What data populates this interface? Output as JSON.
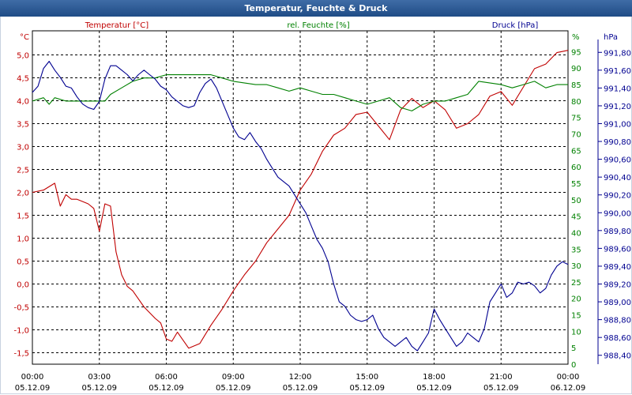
{
  "title": "Temperatur, Feuchte & Druck",
  "colors": {
    "temp": "#c00000",
    "hum": "#008000",
    "press": "#000090",
    "grid": "#000000",
    "time": "#000000"
  },
  "chart_data": {
    "type": "line",
    "title": "Temperatur, Feuchte & Druck",
    "x": {
      "ticks": [
        {
          "h": 0,
          "time": "00:00",
          "date": "05.12.09"
        },
        {
          "h": 3,
          "time": "03:00",
          "date": "05.12.09"
        },
        {
          "h": 6,
          "time": "06:00",
          "date": "05.12.09"
        },
        {
          "h": 9,
          "time": "09:00",
          "date": "05.12.09"
        },
        {
          "h": 12,
          "time": "12:00",
          "date": "05.12.09"
        },
        {
          "h": 15,
          "time": "15:00",
          "date": "05.12.09"
        },
        {
          "h": 18,
          "time": "18:00",
          "date": "05.12.09"
        },
        {
          "h": 21,
          "time": "21:00",
          "date": "05.12.09"
        },
        {
          "h": 24,
          "time": "00:00",
          "date": "06.12.09"
        }
      ],
      "range": [
        0,
        24
      ]
    },
    "axes": {
      "temp": {
        "label": "Temperatur [°C]",
        "unit": "°C",
        "range": [
          -1.75,
          5.25
        ],
        "ticks": [
          "-1,5",
          "-1,0",
          "-0,5",
          "0,0",
          "0,5",
          "1,0",
          "1,5",
          "2,0",
          "2,5",
          "3,0",
          "3,5",
          "4,0",
          "4,5",
          "5,0"
        ],
        "tick_values": [
          -1.5,
          -1.0,
          -0.5,
          0.0,
          0.5,
          1.0,
          1.5,
          2.0,
          2.5,
          3.0,
          3.5,
          4.0,
          4.5,
          5.0
        ]
      },
      "hum": {
        "label": "rel. Feuchte [%]",
        "unit": "%",
        "range": [
          0,
          97.5
        ],
        "ticks": [
          "0",
          "5",
          "10",
          "15",
          "20",
          "25",
          "30",
          "35",
          "40",
          "45",
          "50",
          "55",
          "60",
          "65",
          "70",
          "75",
          "80",
          "85",
          "90",
          "95"
        ],
        "tick_values": [
          0,
          5,
          10,
          15,
          20,
          25,
          30,
          35,
          40,
          45,
          50,
          55,
          60,
          65,
          70,
          75,
          80,
          85,
          90,
          95
        ]
      },
      "press": {
        "label": "Druck [hPa]",
        "unit": "hPa",
        "range": [
          988.3,
          991.9
        ],
        "ticks": [
          "988,40",
          "988,60",
          "988,80",
          "989,00",
          "989,20",
          "989,40",
          "989,60",
          "989,80",
          "990,00",
          "990,20",
          "990,40",
          "990,60",
          "990,80",
          "991,00",
          "991,20",
          "991,40",
          "991,60",
          "991,80"
        ],
        "tick_values": [
          988.4,
          988.6,
          988.8,
          989.0,
          989.2,
          989.4,
          989.6,
          989.8,
          990.0,
          990.2,
          990.4,
          990.6,
          990.8,
          991.0,
          991.2,
          991.4,
          991.6,
          991.8
        ]
      }
    },
    "series": [
      {
        "name": "Temperatur [°C]",
        "axis": "temp",
        "points": [
          [
            0,
            2.0
          ],
          [
            0.5,
            2.05
          ],
          [
            1.0,
            2.2
          ],
          [
            1.25,
            1.7
          ],
          [
            1.5,
            1.95
          ],
          [
            1.75,
            1.85
          ],
          [
            2.0,
            1.85
          ],
          [
            2.5,
            1.75
          ],
          [
            2.75,
            1.65
          ],
          [
            3.0,
            1.15
          ],
          [
            3.25,
            1.75
          ],
          [
            3.5,
            1.7
          ],
          [
            3.75,
            0.7
          ],
          [
            4.0,
            0.2
          ],
          [
            4.25,
            -0.05
          ],
          [
            4.5,
            -0.15
          ],
          [
            5.0,
            -0.5
          ],
          [
            5.5,
            -0.75
          ],
          [
            5.75,
            -0.85
          ],
          [
            6.0,
            -1.2
          ],
          [
            6.25,
            -1.25
          ],
          [
            6.5,
            -1.05
          ],
          [
            7.0,
            -1.4
          ],
          [
            7.5,
            -1.3
          ],
          [
            8.0,
            -0.9
          ],
          [
            8.5,
            -0.55
          ],
          [
            9.0,
            -0.15
          ],
          [
            9.5,
            0.2
          ],
          [
            10.0,
            0.5
          ],
          [
            10.5,
            0.9
          ],
          [
            11.0,
            1.2
          ],
          [
            11.5,
            1.5
          ],
          [
            12.0,
            2.05
          ],
          [
            12.5,
            2.4
          ],
          [
            13.0,
            2.9
          ],
          [
            13.5,
            3.25
          ],
          [
            14.0,
            3.4
          ],
          [
            14.5,
            3.7
          ],
          [
            15.0,
            3.75
          ],
          [
            15.5,
            3.45
          ],
          [
            16.0,
            3.15
          ],
          [
            16.5,
            3.8
          ],
          [
            17.0,
            4.05
          ],
          [
            17.5,
            3.85
          ],
          [
            18.0,
            4.0
          ],
          [
            18.5,
            3.8
          ],
          [
            19.0,
            3.4
          ],
          [
            19.5,
            3.5
          ],
          [
            20.0,
            3.7
          ],
          [
            20.5,
            4.1
          ],
          [
            21.0,
            4.2
          ],
          [
            21.5,
            3.9
          ],
          [
            22.0,
            4.3
          ],
          [
            22.5,
            4.7
          ],
          [
            23.0,
            4.8
          ],
          [
            23.5,
            5.05
          ],
          [
            24.0,
            5.1
          ]
        ]
      },
      {
        "name": "rel. Feuchte [%]",
        "axis": "hum",
        "points": [
          [
            0,
            80
          ],
          [
            0.5,
            81
          ],
          [
            0.75,
            79
          ],
          [
            1.0,
            81
          ],
          [
            1.5,
            80
          ],
          [
            2.0,
            80
          ],
          [
            2.5,
            80
          ],
          [
            3.0,
            80
          ],
          [
            3.25,
            80
          ],
          [
            3.5,
            82
          ],
          [
            4.0,
            84
          ],
          [
            4.5,
            86
          ],
          [
            5.0,
            87
          ],
          [
            5.5,
            87
          ],
          [
            6.0,
            88
          ],
          [
            7.0,
            88
          ],
          [
            8.0,
            88
          ],
          [
            8.5,
            87
          ],
          [
            9.0,
            86
          ],
          [
            10.0,
            85
          ],
          [
            10.5,
            85
          ],
          [
            11.0,
            84
          ],
          [
            11.5,
            83
          ],
          [
            12.0,
            84
          ],
          [
            12.5,
            83
          ],
          [
            13.0,
            82
          ],
          [
            13.5,
            82
          ],
          [
            14.0,
            81
          ],
          [
            14.5,
            80
          ],
          [
            15.0,
            79
          ],
          [
            15.5,
            80
          ],
          [
            16.0,
            81
          ],
          [
            16.5,
            78
          ],
          [
            17.0,
            77
          ],
          [
            17.5,
            79
          ],
          [
            18.0,
            80
          ],
          [
            18.5,
            80
          ],
          [
            19.0,
            81
          ],
          [
            19.5,
            82
          ],
          [
            20.0,
            86
          ],
          [
            21.0,
            85
          ],
          [
            21.5,
            84
          ],
          [
            22.0,
            85
          ],
          [
            22.5,
            86
          ],
          [
            23.0,
            84
          ],
          [
            23.5,
            85
          ],
          [
            24.0,
            85
          ]
        ]
      },
      {
        "name": "Druck [hPa]",
        "axis": "press",
        "points": [
          [
            0,
            991.35
          ],
          [
            0.25,
            991.42
          ],
          [
            0.5,
            991.62
          ],
          [
            0.75,
            991.7
          ],
          [
            1.0,
            991.6
          ],
          [
            1.25,
            991.52
          ],
          [
            1.5,
            991.42
          ],
          [
            1.75,
            991.4
          ],
          [
            2.0,
            991.3
          ],
          [
            2.25,
            991.22
          ],
          [
            2.5,
            991.18
          ],
          [
            2.75,
            991.16
          ],
          [
            3.0,
            991.25
          ],
          [
            3.25,
            991.5
          ],
          [
            3.5,
            991.65
          ],
          [
            3.75,
            991.65
          ],
          [
            4.0,
            991.6
          ],
          [
            4.25,
            991.55
          ],
          [
            4.5,
            991.48
          ],
          [
            4.75,
            991.55
          ],
          [
            5.0,
            991.6
          ],
          [
            5.25,
            991.55
          ],
          [
            5.5,
            991.5
          ],
          [
            5.75,
            991.42
          ],
          [
            6.0,
            991.38
          ],
          [
            6.25,
            991.3
          ],
          [
            6.5,
            991.25
          ],
          [
            6.75,
            991.2
          ],
          [
            7.0,
            991.18
          ],
          [
            7.25,
            991.2
          ],
          [
            7.5,
            991.35
          ],
          [
            7.75,
            991.45
          ],
          [
            8.0,
            991.5
          ],
          [
            8.25,
            991.4
          ],
          [
            8.5,
            991.25
          ],
          [
            8.75,
            991.1
          ],
          [
            9.0,
            990.95
          ],
          [
            9.25,
            990.85
          ],
          [
            9.5,
            990.82
          ],
          [
            9.75,
            990.9
          ],
          [
            10.0,
            990.8
          ],
          [
            10.25,
            990.72
          ],
          [
            10.5,
            990.6
          ],
          [
            10.75,
            990.5
          ],
          [
            11.0,
            990.4
          ],
          [
            11.25,
            990.35
          ],
          [
            11.5,
            990.3
          ],
          [
            11.75,
            990.2
          ],
          [
            12.0,
            990.1
          ],
          [
            12.25,
            990.0
          ],
          [
            12.5,
            989.85
          ],
          [
            12.75,
            989.7
          ],
          [
            13.0,
            989.6
          ],
          [
            13.25,
            989.45
          ],
          [
            13.5,
            989.2
          ],
          [
            13.75,
            989.0
          ],
          [
            14.0,
            988.95
          ],
          [
            14.25,
            988.85
          ],
          [
            14.5,
            988.8
          ],
          [
            14.75,
            988.78
          ],
          [
            15.0,
            988.8
          ],
          [
            15.25,
            988.85
          ],
          [
            15.5,
            988.7
          ],
          [
            15.75,
            988.6
          ],
          [
            16.0,
            988.55
          ],
          [
            16.25,
            988.5
          ],
          [
            16.5,
            988.55
          ],
          [
            16.75,
            988.6
          ],
          [
            17.0,
            988.5
          ],
          [
            17.25,
            988.45
          ],
          [
            17.5,
            988.55
          ],
          [
            17.75,
            988.65
          ],
          [
            18.0,
            988.92
          ],
          [
            18.25,
            988.8
          ],
          [
            18.5,
            988.7
          ],
          [
            18.75,
            988.6
          ],
          [
            19.0,
            988.5
          ],
          [
            19.25,
            988.55
          ],
          [
            19.5,
            988.65
          ],
          [
            19.75,
            988.6
          ],
          [
            20.0,
            988.55
          ],
          [
            20.25,
            988.7
          ],
          [
            20.5,
            989.0
          ],
          [
            20.75,
            989.1
          ],
          [
            21.0,
            989.2
          ],
          [
            21.25,
            989.05
          ],
          [
            21.5,
            989.1
          ],
          [
            21.75,
            989.22
          ],
          [
            22.0,
            989.2
          ],
          [
            22.25,
            989.22
          ],
          [
            22.5,
            989.18
          ],
          [
            22.75,
            989.1
          ],
          [
            23.0,
            989.15
          ],
          [
            23.25,
            989.3
          ],
          [
            23.5,
            989.4
          ],
          [
            23.75,
            989.45
          ],
          [
            24.0,
            989.42
          ]
        ]
      }
    ]
  }
}
